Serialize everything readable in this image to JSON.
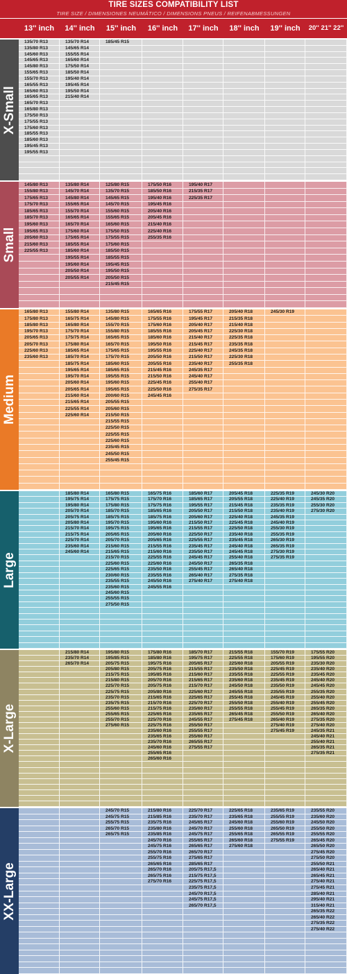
{
  "title": "TIRE SIZES COMPATIBILITY LIST",
  "subtitle": "TIRE SIZE  /  DIMENSIONES NEUMÁTICO  /  DIMENSIONS PNEUS  /  REIFENABMESSUNGEN",
  "columns": [
    "13'' inch",
    "14'' inch",
    "15'' inch",
    "16'' inch",
    "17'' inch",
    "18'' inch",
    "19'' inch",
    "20'' 21'' 22''"
  ],
  "categories": [
    {
      "name": "X-Small",
      "color": "#4d4d4d",
      "cell_color": "#d9d9d9",
      "rows": 23,
      "columns": [
        [
          "135/70 R13",
          "135/80 R13",
          "145/60 R13",
          "145/65 R13",
          "145/80 R13",
          "155/65 R13",
          "155/70 R13",
          "165/55 R13",
          "165/60 R13",
          "165/65 R13",
          "165/70 R13",
          "165/80 R13",
          "175/50 R13",
          "175/55 R13",
          "175/60 R13",
          "185/55 R13",
          "185/60 R13",
          "195/45 R13",
          "195/55 R13"
        ],
        [
          "135/70 R14",
          "145/65 R14",
          "155/55 R14",
          "165/60 R14",
          "175/50 R14",
          "185/50 R14",
          "195/40 R14",
          "195/45 R14",
          "195/50 R14",
          "215/40 R14"
        ],
        [
          "185/45 R15"
        ],
        [],
        [],
        [],
        [],
        []
      ]
    },
    {
      "name": "Small",
      "color": "#a94a57",
      "cell_color": "#dc9ca5",
      "rows": 19,
      "columns": [
        [
          "145/80 R13",
          "155/80 R13",
          "175/65 R13",
          "175/70 R13",
          "185/65 R13",
          "185/70 R13",
          "195/60 R13",
          "195/65 R13",
          "205/60 R13",
          "215/60 R13",
          "225/55 R13"
        ],
        [
          "135/80 R14",
          "145/70 R14",
          "145/80 R14",
          "155/65 R14",
          "155/70 R14",
          "165/65 R14",
          "165/70 R14",
          "175/60 R14",
          "175/65 R14",
          "185/55 R14",
          "185/60 R14",
          "195/55 R14",
          "195/60 R14",
          "205/50 R14",
          "205/55 R14"
        ],
        [
          "125/80 R15",
          "135/70 R15",
          "145/65 R15",
          "145/70 R15",
          "155/60 R15",
          "155/65 R15",
          "165/60 R15",
          "175/50 R15",
          "175/55 R15",
          "175/60 R15",
          "185/50 R15",
          "185/55 R15",
          "195/45 R15",
          "195/50 R15",
          "205/50 R15",
          "215/45 R15"
        ],
        [
          "175/50 R16",
          "185/50 R16",
          "195/40 R16",
          "195/45 R16",
          "205/40 R16",
          "205/45 R16",
          "215/40 R16",
          "225/40 R16",
          "255/35 R16"
        ],
        [
          "195/40 R17",
          "215/35 R17",
          "225/35 R17"
        ],
        [],
        [],
        []
      ]
    },
    {
      "name": "Medium",
      "color": "#ea7a27",
      "cell_color": "#fbc391",
      "rows": 28,
      "columns": [
        [
          "165/80 R13",
          "175/80 R13",
          "185/80 R13",
          "195/70 R13",
          "205/65 R13",
          "205/70 R13",
          "225/60 R13",
          "235/60 R13"
        ],
        [
          "155/80 R14",
          "165/75 R14",
          "165/80 R14",
          "175/70 R14",
          "175/75 R14",
          "175/80 R14",
          "185/65 R14",
          "185/70 R14",
          "185/75 R14",
          "195/65 R14",
          "195/70 R14",
          "205/60 R14",
          "205/65 R14",
          "215/60 R14",
          "215/65 R14",
          "225/55 R14",
          "225/60 R14"
        ],
        [
          "135/80 R15",
          "145/80 R15",
          "155/70 R15",
          "155/80 R15",
          "165/65 R15",
          "165/70 R15",
          "175/65 R15",
          "175/70 R15",
          "185/60 R15",
          "185/65 R15",
          "195/55 R15",
          "195/60 R15",
          "195/65 R15",
          "200/60 R15",
          "205/55 R15",
          "205/60 R15",
          "215/50 R15",
          "215/55 R15",
          "225/50 R15",
          "225/55 R15",
          "225/60 R15",
          "235/45 R15",
          "245/50 R15",
          "255/45 R15"
        ],
        [
          "165/65 R16",
          "175/55 R16",
          "175/60 R16",
          "185/55 R16",
          "185/60 R16",
          "195/50 R16",
          "195/55 R16",
          "205/50 R16",
          "205/55 R16",
          "215/45 R16",
          "215/50 R16",
          "225/45 R16",
          "225/50 R16",
          "245/45 R16"
        ],
        [
          "175/55 R17",
          "195/45 R17",
          "205/40 R17",
          "205/45 R17",
          "215/40 R17",
          "215/45 R17",
          "225/40 R17",
          "215/50 R17",
          "235/40 R17",
          "245/35 R17",
          "245/40 R17",
          "255/40 R17",
          "275/35 R17"
        ],
        [
          "205/40 R18",
          "215/35 R18",
          "215/40 R18",
          "225/30 R18",
          "225/35 R18",
          "235/35 R18",
          "245/35 R18",
          "225/30 R18",
          "255/35 R18"
        ],
        [
          "245/30 R19"
        ],
        []
      ]
    },
    {
      "name": "Large",
      "color": "#16606c",
      "cell_color": "#92cedc",
      "rows": 27,
      "columns": [
        [],
        [
          "185/80 R14",
          "195/75 R14",
          "195/80 R14",
          "205/70 R14",
          "205/75 R14",
          "205/80 R14",
          "215/70 R14",
          "215/75 R14",
          "225/70 R14",
          "235/60 R14",
          "245/60 R14"
        ],
        [
          "165/80 R15",
          "175/75 R15",
          "175/80 R15",
          "185/70 R15",
          "185/75 R15",
          "195/70 R15",
          "195/75 R15",
          "205/65 R15",
          "205/70 R15",
          "215/60 R15",
          "215/65 R15",
          "215/70 R15",
          "225/60 R15",
          "225/65 R15",
          "230/60 R15",
          "235/55 R15",
          "235/60 R15",
          "245/60 R15",
          "255/55 R15",
          "275/50 R15"
        ],
        [
          "165/75 R16",
          "175/70 R16",
          "175/75 R16",
          "185/65 R16",
          "185/75 R16",
          "195/60 R16",
          "195/65 R16",
          "205/60 R16",
          "205/65 R16",
          "215/55 R16",
          "215/60 R16",
          "225/55 R16",
          "225/60 R16",
          "235/50 R16",
          "235/55 R16",
          "245/50 R16",
          "245/55 R16"
        ],
        [
          "185/60 R17",
          "185/65 R17",
          "195/55 R17",
          "205/50 R17",
          "205/60 R17",
          "215/50 R17",
          "215/55 R17",
          "225/50 R17",
          "225/55 R17",
          "235/45 R17",
          "235/50 R17",
          "245/45 R17",
          "245/50 R17",
          "255/45 R17",
          "265/40 R17",
          "275/40 R17"
        ],
        [
          "205/45 R18",
          "205/55 R18",
          "215/45 R18",
          "215/50 R18",
          "225/40 R18",
          "225/45 R18",
          "225/50 R18",
          "235/40 R18",
          "235/45 R18",
          "245/40 R18",
          "245/45 R18",
          "255/40 R18",
          "265/35 R18",
          "265/40 R18",
          "275/35 R18",
          "275/40 R18"
        ],
        [
          "225/35 R19",
          "225/40 R19",
          "235/35 R19",
          "235/40 R19",
          "245/35 R19",
          "245/40 R19",
          "255/30 R19",
          "255/35 R19",
          "265/30 R19",
          "265/35 R19",
          "275/30 R19",
          "275/35 R19"
        ],
        [
          "245/30 R20",
          "245/35 R20",
          "255/30 R20",
          "275/30 R20"
        ]
      ]
    },
    {
      "name": "X-Large",
      "color": "#8e8462",
      "cell_color": "#c8bf91",
      "rows": 28,
      "columns": [
        [],
        [
          "215/80 R14",
          "235/70 R14",
          "265/70 R14"
        ],
        [
          "195/80 R15",
          "195/85 R15",
          "205/75 R15",
          "205/80 R15",
          "215/75 R15",
          "215/80 R15",
          "225/70 R15",
          "225/75 R15",
          "235/70 R15",
          "235/75 R15",
          "255/60 R15",
          "255/65 R15",
          "255/70 R15",
          "275/60 R15"
        ],
        [
          "175/80 R16",
          "185/80 R16",
          "195/75 R16",
          "205/75 R16",
          "195/85 R16",
          "205/70 R16",
          "205/75 R16",
          "205/80 R16",
          "215/65 R16",
          "215/70 R16",
          "215/75 R16",
          "225/65 R16",
          "225/70 R16",
          "225/75 R16",
          "235/60 R16",
          "235/65 R16",
          "235/70 R16",
          "245/60 R16",
          "255/65 R16",
          "265/60 R16"
        ],
        [
          "185/70 R17",
          "195/75 R17",
          "205/65 R17",
          "215/55 R17",
          "215/60 R17",
          "215/65 R17",
          "215/70 R17",
          "225/60 R17",
          "225/65 R17",
          "225/70 R17",
          "235/60 R17",
          "235/65 R17",
          "245/55 R17",
          "255/50 R17",
          "255/55 R17",
          "255/60 R17",
          "265/55 R17",
          "275/55 R17"
        ],
        [
          "215/55 R18",
          "225/55 R18",
          "225/60 R18",
          "235/50 R18",
          "235/55 R18",
          "235/60 R18",
          "245/50 R18",
          "245/55 R18",
          "255/45 R18",
          "255/50 R18",
          "255/55 R18",
          "265/45 R18",
          "275/45 R18"
        ],
        [
          "155/70 R19",
          "175/60 R19",
          "205/55 R19",
          "225/45 R19",
          "225/55 R19",
          "235/45 R19",
          "235/50 R19",
          "235/55 R19",
          "245/45 R19",
          "255/40 R19",
          "255/45 R19",
          "255/50 R19",
          "265/40 R19",
          "275/40 R19",
          "275/45 R19"
        ],
        [
          "175/55 R20",
          "195/55 R20",
          "235/30 R20",
          "235/40 R20",
          "235/45 R20",
          "245/40 R20",
          "245/45 R20",
          "255/35 R20",
          "255/40 R20",
          "255/45 R20",
          "265/35 R20",
          "265/40 R20",
          "275/35 R20",
          "275/40 R20",
          "245/35 R21",
          "245/40 R21",
          "255/40 R21",
          "265/35 R21",
          "275/35 R21"
        ]
      ]
    },
    {
      "name": "XX-Large",
      "color": "#243e66",
      "cell_color": "#a8bcd8",
      "rows": 28,
      "columns": [
        [],
        [],
        [
          "245/70 R15",
          "245/75 R15",
          "255/75 R15",
          "265/70 R15",
          "265/75 R15"
        ],
        [
          "215/80 R16",
          "215/85 R16",
          "235/75 R16",
          "235/80 R16",
          "235/85 R16",
          "245/70 R16",
          "245/75 R16",
          "255/70 R16",
          "255/75 R16",
          "265/65 R16",
          "265/70 R16",
          "265/75 R16",
          "275/70 R16"
        ],
        [
          "225/70 R17",
          "235/70 R17",
          "245/65 R17",
          "245/70 R17",
          "245/75 R17",
          "255/65 R17",
          "265/65 R17",
          "265/70 R17",
          "275/65 R17",
          "285/65 R17",
          "205/75 R17,5",
          "215/75 R17,5",
          "225/75 R17,5",
          "235/75 R17,5",
          "245/70 R17,5",
          "245/75 R17,5",
          "265/70 R17,5"
        ],
        [
          "225/65 R18",
          "235/65 R18",
          "245/60 R18",
          "255/60 R18",
          "255/65 R18",
          "265/60 R18",
          "275/60 R18"
        ],
        [
          "235/65 R19",
          "255/55 R19",
          "255/60 R19",
          "265/50 R19",
          "265/55 R19",
          "275/55 R19"
        ],
        [
          "235/55 R20",
          "235/60 R20",
          "245/50 R20",
          "255/50 R20",
          "255/55 R20",
          "265/45 R20",
          "265/50 R20",
          "275/45 R20",
          "275/50 R20",
          "255/50 R21",
          "265/40 R21",
          "265/45 R21",
          "275/40 R21",
          "275/45 R21",
          "285/40 R21",
          "295/40 R21",
          "315/40 R21",
          "265/35 R22",
          "265/40 R22",
          "275/35 R22",
          "275/40 R22"
        ]
      ]
    }
  ]
}
